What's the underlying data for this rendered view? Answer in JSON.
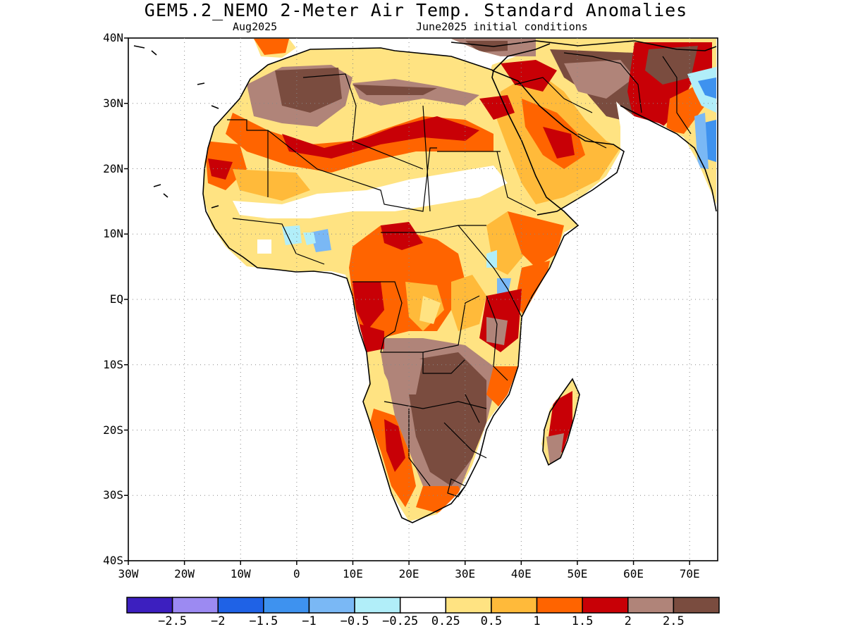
{
  "title": "GEM5.2_NEMO 2-Meter Air Temp. Standard Anomalies",
  "subtitle_left": "Aug2025",
  "subtitle_right": "June2025 initial conditions",
  "map": {
    "lon_range": [
      -30,
      75
    ],
    "lat_range": [
      -40,
      40
    ],
    "y_ticks": [
      "40N",
      "30N",
      "20N",
      "10N",
      "EQ",
      "10S",
      "20S",
      "30S",
      "40S"
    ],
    "x_ticks": [
      "30W",
      "20W",
      "10W",
      "0",
      "10E",
      "20E",
      "30E",
      "40E",
      "50E",
      "60E",
      "70E"
    ]
  },
  "colorbar": {
    "colors": [
      "#3c1fbf",
      "#9c8af2",
      "#1f62e6",
      "#3e92ef",
      "#7ab8f5",
      "#b1eef9",
      "#ffffff",
      "#ffe382",
      "#ffba3a",
      "#ff6400",
      "#c80006",
      "#b08479",
      "#7a4c3f"
    ],
    "labels": [
      "-2.5",
      "-2",
      "-1.5",
      "-1",
      "-0.5",
      "-0.25",
      "0.25",
      "0.5",
      "1",
      "1.5",
      "2",
      "2.5"
    ]
  }
}
